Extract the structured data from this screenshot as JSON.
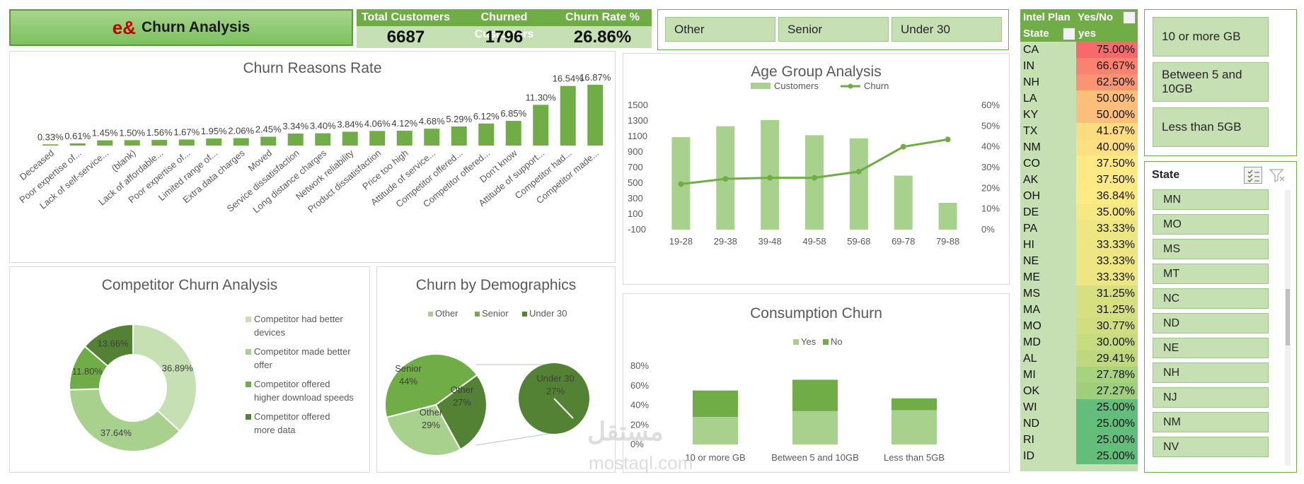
{
  "header": {
    "logo": "e&",
    "title": "Churn Analysis"
  },
  "kpis": {
    "labels": [
      "Total Customers",
      "Churned Customers",
      "Churn Rate %"
    ],
    "values": [
      "6687",
      "1796",
      "26.86%"
    ]
  },
  "demographic_slicer": {
    "items": [
      "Other",
      "Senior",
      "Under 30"
    ]
  },
  "data_slicer": {
    "items": [
      "10 or more GB",
      "Between 5 and 10GB",
      "Less than 5GB"
    ]
  },
  "state_table": {
    "header1_left": "Intel Plan",
    "header1_right": "Yes/No",
    "header2_left": "State",
    "header2_right": "yes",
    "rows": [
      {
        "state": "CA",
        "value": "75.00%",
        "color": "#f8696b"
      },
      {
        "state": "IN",
        "value": "66.67%",
        "color": "#f98370"
      },
      {
        "state": "NH",
        "value": "62.50%",
        "color": "#fa9473"
      },
      {
        "state": "LA",
        "value": "50.00%",
        "color": "#fcbf7b"
      },
      {
        "state": "KY",
        "value": "50.00%",
        "color": "#fcbf7b"
      },
      {
        "state": "TX",
        "value": "41.67%",
        "color": "#fedb81"
      },
      {
        "state": "NM",
        "value": "40.00%",
        "color": "#fee082"
      },
      {
        "state": "CO",
        "value": "37.50%",
        "color": "#ffe984"
      },
      {
        "state": "AK",
        "value": "37.50%",
        "color": "#ffe984"
      },
      {
        "state": "OH",
        "value": "36.84%",
        "color": "#ffeb84"
      },
      {
        "state": "DE",
        "value": "35.00%",
        "color": "#f6e883"
      },
      {
        "state": "PA",
        "value": "33.33%",
        "color": "#eee683"
      },
      {
        "state": "HI",
        "value": "33.33%",
        "color": "#eee683"
      },
      {
        "state": "NE",
        "value": "33.33%",
        "color": "#eee683"
      },
      {
        "state": "ME",
        "value": "33.33%",
        "color": "#eee683"
      },
      {
        "state": "MS",
        "value": "31.25%",
        "color": "#d6df81"
      },
      {
        "state": "MA",
        "value": "31.25%",
        "color": "#d6df81"
      },
      {
        "state": "MO",
        "value": "30.77%",
        "color": "#d0dd81"
      },
      {
        "state": "MD",
        "value": "30.00%",
        "color": "#c7db80"
      },
      {
        "state": "AL",
        "value": "29.41%",
        "color": "#bfd87f"
      },
      {
        "state": "MI",
        "value": "27.78%",
        "color": "#a7d27e"
      },
      {
        "state": "OK",
        "value": "27.27%",
        "color": "#9fcf7d"
      },
      {
        "state": "WI",
        "value": "25.00%",
        "color": "#63be7b"
      },
      {
        "state": "ND",
        "value": "25.00%",
        "color": "#63be7b"
      },
      {
        "state": "RI",
        "value": "25.00%",
        "color": "#63be7b"
      },
      {
        "state": "ID",
        "value": "25.00%",
        "color": "#63be7b"
      }
    ]
  },
  "state_slicer": {
    "title": "State",
    "items": [
      "MN",
      "MO",
      "MS",
      "MT",
      "NC",
      "ND",
      "NE",
      "NH",
      "NJ",
      "NM",
      "NV"
    ]
  },
  "watermark": {
    "line1": "مستقل",
    "line2": "mostaql.com"
  },
  "colors": {
    "accent": "#70ad47",
    "light": "#c6e0b4",
    "dark": "#548235",
    "mid": "#a9d18e"
  },
  "chart_data": [
    {
      "id": "churn_reasons",
      "type": "bar",
      "title": "Churn Reasons Rate",
      "categories": [
        "Deceased",
        "Poor expertise of...",
        "Lack of self-service...",
        "(blank)",
        "Lack of affordable...",
        "Poor expertise of...",
        "Limited range of...",
        "Extra data charges",
        "Moved",
        "Service dissatisfaction",
        "Long distance charges",
        "Network reliability",
        "Product dissatisfaction",
        "Price too high",
        "Attitude of service...",
        "Competitor offered...",
        "Competitor offered...",
        "Don't know",
        "Attitude of support...",
        "Competitor had...",
        "Competitor made..."
      ],
      "values": [
        0.33,
        0.61,
        1.45,
        1.5,
        1.56,
        1.67,
        1.95,
        2.06,
        2.45,
        3.34,
        3.4,
        3.84,
        4.06,
        4.12,
        4.68,
        5.29,
        6.12,
        6.85,
        11.3,
        16.54,
        16.87
      ],
      "labels": [
        "0.33%",
        "0.61%",
        "1.45%",
        "1.50%",
        "1.56%",
        "1.67%",
        "1.95%",
        "2.06%",
        "2.45%",
        "3.34%",
        "3.40%",
        "3.84%",
        "4.06%",
        "4.12%",
        "4.68%",
        "5.29%",
        "6.12%",
        "6.85%",
        "11.30%",
        "16.54%",
        "16.87%"
      ],
      "ylim": [
        0,
        18
      ]
    },
    {
      "id": "age_group",
      "type": "bar",
      "title": "Age Group Analysis",
      "categories": [
        "19-28",
        "29-38",
        "39-48",
        "49-58",
        "59-68",
        "69-78",
        "79-88"
      ],
      "series": [
        {
          "name": "Customers",
          "values": [
            1090,
            1230,
            1310,
            1115,
            1075,
            595,
            245
          ]
        },
        {
          "name": "Churn",
          "values": [
            22,
            24.5,
            25,
            25,
            28,
            40,
            43.5
          ]
        }
      ],
      "y_ticks": [
        "1500",
        "1300",
        "1100",
        "900",
        "700",
        "500",
        "300",
        "100",
        "-100"
      ],
      "y2_ticks": [
        "60%",
        "50%",
        "40%",
        "30%",
        "20%",
        "10%",
        "0%"
      ],
      "ylim": [
        -100,
        1500
      ],
      "y2lim": [
        0,
        60
      ]
    },
    {
      "id": "competitor_churn",
      "type": "pie",
      "title": "Competitor Churn Analysis",
      "categories": [
        "Competitor had better devices",
        "Competitor made better offer",
        "Competitor offered higher download speeds",
        "Competitor offered more data"
      ],
      "legend_lines": [
        [
          "Competitor had better",
          "devices"
        ],
        [
          "Competitor made better",
          "offer"
        ],
        [
          "Competitor offered",
          "higher download speeds"
        ],
        [
          "Competitor offered",
          "more data"
        ]
      ],
      "values": [
        36.89,
        37.64,
        11.8,
        13.66
      ],
      "labels": [
        "36.89%",
        "37.64%",
        "11.80%",
        "13.66%"
      ],
      "colors": [
        "#c6e0b4",
        "#a9d18e",
        "#70ad47",
        "#548235"
      ]
    },
    {
      "id": "demographics",
      "type": "pie",
      "title": "Churn by Demographics",
      "legend": [
        "Other",
        "Senior",
        "Under 30"
      ],
      "pie1": [
        {
          "name": "Senior",
          "pct": "44%",
          "value": 44,
          "color": "#70ad47"
        },
        {
          "name": "Other",
          "pct": "27%",
          "value": 27,
          "color": "#548235"
        },
        {
          "name": "Other",
          "pct": "29%",
          "value": 29,
          "color": "#a9d18e"
        }
      ],
      "pie2": [
        {
          "name": "Under 30",
          "pct": "27%",
          "value": 27,
          "color": "#548235"
        }
      ],
      "colors": [
        "#a9d18e",
        "#70ad47",
        "#548235"
      ]
    },
    {
      "id": "consumption",
      "type": "bar",
      "title": "Consumption Churn",
      "categories": [
        "10 or more GB",
        "Between 5 and 10GB",
        "Less than 5GB"
      ],
      "series": [
        {
          "name": "Yes",
          "values": [
            28,
            34,
            35
          ]
        },
        {
          "name": "No",
          "values": [
            27,
            32,
            12
          ]
        }
      ],
      "y_ticks": [
        "80%",
        "60%",
        "40%",
        "20%",
        "0%"
      ],
      "ylim": [
        0,
        80
      ]
    }
  ]
}
